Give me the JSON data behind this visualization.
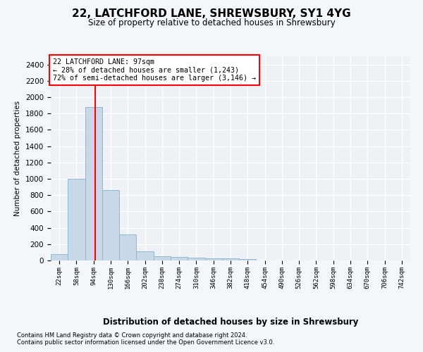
{
  "title1": "22, LATCHFORD LANE, SHREWSBURY, SY1 4YG",
  "title2": "Size of property relative to detached houses in Shrewsbury",
  "xlabel": "Distribution of detached houses by size in Shrewsbury",
  "ylabel": "Number of detached properties",
  "bin_labels": [
    "22sqm",
    "58sqm",
    "94sqm",
    "130sqm",
    "166sqm",
    "202sqm",
    "238sqm",
    "274sqm",
    "310sqm",
    "346sqm",
    "382sqm",
    "418sqm",
    "454sqm",
    "490sqm",
    "526sqm",
    "562sqm",
    "598sqm",
    "634sqm",
    "670sqm",
    "706sqm",
    "742sqm"
  ],
  "bar_values": [
    80,
    1000,
    1880,
    860,
    320,
    110,
    50,
    40,
    35,
    30,
    25,
    20,
    0,
    0,
    0,
    0,
    0,
    0,
    0,
    0,
    0
  ],
  "bar_color": "#c8d8e8",
  "bar_edgecolor": "#8fb8d0",
  "annotation_line1": "22 LATCHFORD LANE: 97sqm",
  "annotation_line2": "← 28% of detached houses are smaller (1,243)",
  "annotation_line3": "72% of semi-detached houses are larger (3,146) →",
  "ylim": [
    0,
    2500
  ],
  "yticks": [
    0,
    200,
    400,
    600,
    800,
    1000,
    1200,
    1400,
    1600,
    1800,
    2000,
    2200,
    2400
  ],
  "footnote1": "Contains HM Land Registry data © Crown copyright and database right 2024.",
  "footnote2": "Contains public sector information licensed under the Open Government Licence v3.0.",
  "bg_color": "#f4f7fa",
  "plot_bg_color": "#eef2f7"
}
